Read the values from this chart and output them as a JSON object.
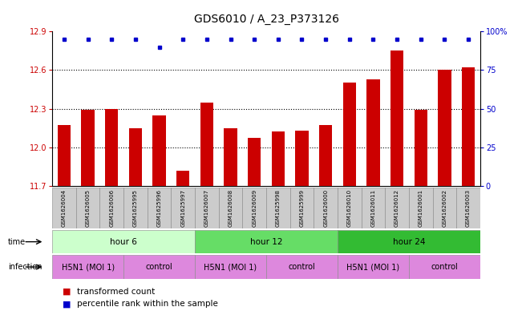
{
  "title": "GDS6010 / A_23_P373126",
  "samples": [
    "GSM1626004",
    "GSM1626005",
    "GSM1626006",
    "GSM1625995",
    "GSM1625996",
    "GSM1625997",
    "GSM1626007",
    "GSM1626008",
    "GSM1626009",
    "GSM1625998",
    "GSM1625999",
    "GSM1626000",
    "GSM1626010",
    "GSM1626011",
    "GSM1626012",
    "GSM1626001",
    "GSM1626002",
    "GSM1626003"
  ],
  "bar_values": [
    12.17,
    12.29,
    12.3,
    12.15,
    12.25,
    11.82,
    12.35,
    12.15,
    12.07,
    12.12,
    12.13,
    12.17,
    12.5,
    12.53,
    12.75,
    12.29,
    12.6,
    12.62
  ],
  "percentile_values": [
    95,
    95,
    95,
    95,
    90,
    95,
    95,
    95,
    95,
    95,
    95,
    95,
    95,
    95,
    95,
    95,
    95,
    95
  ],
  "bar_color": "#cc0000",
  "dot_color": "#0000cc",
  "ylim_left": [
    11.7,
    12.9
  ],
  "ylim_right": [
    0,
    100
  ],
  "yticks_left": [
    11.7,
    12.0,
    12.3,
    12.6,
    12.9
  ],
  "yticks_right": [
    0,
    25,
    50,
    75,
    100
  ],
  "ytick_labels_right": [
    "0",
    "25",
    "50",
    "75",
    "100%"
  ],
  "grid_lines": [
    12.0,
    12.3,
    12.6
  ],
  "bar_width": 0.55,
  "bar_color_hex": "#cc0000",
  "dot_color_hex": "#0000cc",
  "title_fontsize": 10,
  "tick_fontsize": 7,
  "sample_fontsize": 5,
  "row_label_fontsize": 7,
  "row_content_fontsize": 7.5,
  "legend_fontsize": 7.5,
  "time_groups": [
    {
      "label": "hour 6",
      "start": 0,
      "end": 6,
      "color": "#ccffcc"
    },
    {
      "label": "hour 12",
      "start": 6,
      "end": 12,
      "color": "#66dd66"
    },
    {
      "label": "hour 24",
      "start": 12,
      "end": 18,
      "color": "#33bb33"
    }
  ],
  "inf_groups": [
    {
      "label": "H5N1 (MOI 1)",
      "start": 0,
      "end": 3
    },
    {
      "label": "control",
      "start": 3,
      "end": 6
    },
    {
      "label": "H5N1 (MOI 1)",
      "start": 6,
      "end": 9
    },
    {
      "label": "control",
      "start": 9,
      "end": 12
    },
    {
      "label": "H5N1 (MOI 1)",
      "start": 12,
      "end": 15
    },
    {
      "label": "control",
      "start": 15,
      "end": 18
    }
  ],
  "inf_color": "#dd88dd",
  "sample_bg_color": "#cccccc"
}
